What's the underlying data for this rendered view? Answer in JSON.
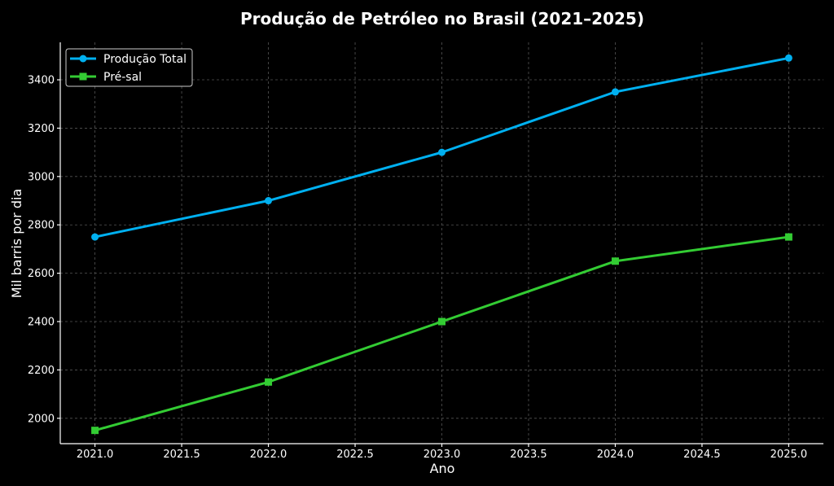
{
  "chart_data": {
    "type": "line",
    "title": "Produção de Petróleo no Brasil (2021–2025)",
    "xlabel": "Ano",
    "ylabel": "Mil barris por dia",
    "x": [
      2021,
      2022,
      2023,
      2024,
      2025
    ],
    "xlim": [
      2020.8,
      2025.2
    ],
    "ylim": [
      1895,
      3555
    ],
    "x_ticks": [
      2021.0,
      2021.5,
      2022.0,
      2022.5,
      2023.0,
      2023.5,
      2024.0,
      2024.5,
      2025.0
    ],
    "x_tick_labels": [
      "2021.0",
      "2021.5",
      "2022.0",
      "2022.5",
      "2023.0",
      "2023.5",
      "2024.0",
      "2024.5",
      "2025.0"
    ],
    "y_ticks": [
      2000,
      2200,
      2400,
      2600,
      2800,
      3000,
      3200,
      3400
    ],
    "y_tick_labels": [
      "2000",
      "2200",
      "2400",
      "2600",
      "2800",
      "3000",
      "3200",
      "3400"
    ],
    "grid": true,
    "legend_position": "top-left",
    "series": [
      {
        "name": "Produção Total",
        "values": [
          2750,
          2900,
          3100,
          3350,
          3490
        ],
        "color": "#00b0f0",
        "marker": "circle"
      },
      {
        "name": "Pré-sal",
        "values": [
          1950,
          2150,
          2400,
          2650,
          2750
        ],
        "color": "#33cc33",
        "marker": "square"
      }
    ]
  }
}
